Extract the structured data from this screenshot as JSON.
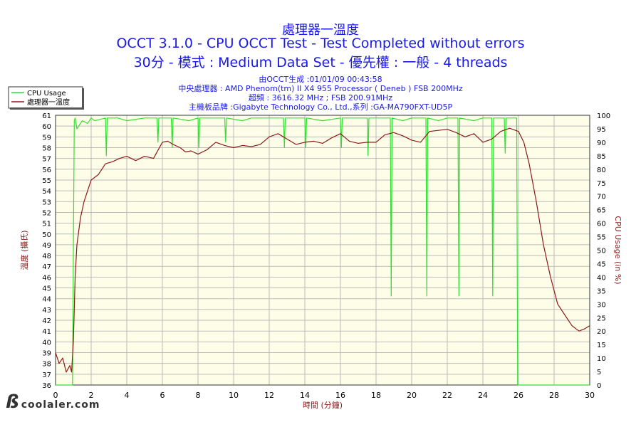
{
  "header": {
    "title_line1": "處理器一溫度",
    "title_line2": "OCCT 3.1.0 - CPU OCCT Test - Test Completed without errors",
    "title_line3": "30分 - 模式 : Medium Data Set - 優先權 : 一般 - 4 threads"
  },
  "info": {
    "line1": "由OCCT生成 :01/01/09 00:43:58",
    "line2": "中央處理器 : AMD Phenom(tm) II X4 955 Processor ( Deneb ) FSB 200MHz",
    "line3": "超頻 : 3616.32 MHz ; FSB 200.91MHz",
    "line4": "主機板品牌 :Gigabyte Technology Co., Ltd.,系列 :GA-MA790FXT-UD5P"
  },
  "watermark": "coolaler.com",
  "colors": {
    "cpu_usage": "#33dd33",
    "temperature": "#8b1a1a",
    "plot_bg": "#fefee8",
    "grid": "#bbbbbb",
    "text_blue": "#1a1ae6",
    "text_red": "#8b1a1a"
  },
  "chart_data": {
    "type": "line",
    "xlabel": "時間 (分鐘)",
    "ylabel_left": "溫度 (攝氏)",
    "ylabel_right": "CPU Usage (in %)",
    "xlim": [
      0,
      30
    ],
    "ylim_left": [
      36,
      61
    ],
    "ylim_right": [
      0,
      100
    ],
    "x_ticks": [
      0,
      2,
      4,
      6,
      8,
      10,
      12,
      14,
      16,
      18,
      20,
      22,
      24,
      26,
      28,
      30
    ],
    "y_left_ticks": [
      36,
      37,
      38,
      39,
      40,
      41,
      42,
      43,
      44,
      45,
      46,
      47,
      48,
      49,
      50,
      51,
      52,
      53,
      54,
      55,
      56,
      57,
      58,
      59,
      60,
      61
    ],
    "y_right_ticks": [
      0,
      5,
      10,
      15,
      20,
      25,
      30,
      35,
      40,
      45,
      50,
      55,
      60,
      65,
      70,
      75,
      80,
      85,
      90,
      95,
      100
    ],
    "grid": true,
    "legend_position": "top-left",
    "series": [
      {
        "name": "CPU Usage",
        "axis": "right",
        "x": [
          0,
          0.9,
          0.95,
          1.0,
          1.05,
          1.1,
          1.2,
          1.5,
          1.8,
          2.0,
          2.2,
          2.8,
          2.85,
          2.9,
          3.5,
          4.0,
          5.0,
          5.7,
          5.75,
          5.8,
          6.5,
          6.55,
          6.6,
          7.5,
          8.0,
          8.05,
          8.1,
          9.5,
          9.55,
          9.6,
          10.5,
          11.0,
          12.0,
          12.8,
          12.85,
          12.9,
          14.0,
          14.05,
          14.1,
          15.0,
          16.0,
          16.05,
          16.1,
          17.5,
          17.55,
          17.6,
          18.8,
          18.85,
          18.9,
          19.5,
          20.0,
          20.8,
          20.85,
          20.9,
          21.5,
          22.0,
          22.6,
          22.65,
          22.7,
          23.5,
          24.0,
          24.5,
          24.55,
          24.6,
          25.2,
          25.25,
          25.3,
          25.9,
          25.95,
          26.0,
          26.05,
          26.1,
          30
        ],
        "y": [
          0,
          0,
          0,
          50,
          98,
          99,
          95,
          98,
          97,
          99,
          98,
          99,
          85,
          99,
          99,
          98,
          99,
          99,
          90,
          99,
          99,
          88,
          99,
          98,
          99,
          88,
          99,
          99,
          90,
          99,
          98,
          99,
          99,
          99,
          88,
          99,
          99,
          88,
          99,
          98,
          99,
          88,
          99,
          99,
          85,
          99,
          99,
          33,
          99,
          98,
          99,
          99,
          33,
          99,
          98,
          99,
          99,
          33,
          99,
          98,
          99,
          99,
          33,
          99,
          99,
          86,
          99,
          99,
          0,
          0,
          0,
          0,
          0
        ]
      },
      {
        "name": "處理器一溫度",
        "axis": "left",
        "x": [
          0,
          0.2,
          0.4,
          0.6,
          0.8,
          0.9,
          1.0,
          1.05,
          1.1,
          1.2,
          1.4,
          1.6,
          1.8,
          2.0,
          2.4,
          2.8,
          3.2,
          3.6,
          4.0,
          4.5,
          5.0,
          5.5,
          6.0,
          6.3,
          6.6,
          7.0,
          7.3,
          7.6,
          8.0,
          8.5,
          9.0,
          9.5,
          10.0,
          10.5,
          11.0,
          11.5,
          12.0,
          12.5,
          13.0,
          13.5,
          14.0,
          14.5,
          15.0,
          15.5,
          16.0,
          16.5,
          17.0,
          17.5,
          18.0,
          18.5,
          19.0,
          19.5,
          20.0,
          20.5,
          21.0,
          21.5,
          22.0,
          22.5,
          23.0,
          23.5,
          24.0,
          24.5,
          25.0,
          25.5,
          26.0,
          26.3,
          26.6,
          27.0,
          27.4,
          27.8,
          28.2,
          28.6,
          29.0,
          29.4,
          29.7,
          30.0
        ],
        "y": [
          39,
          38,
          38.5,
          37.2,
          37.8,
          37.2,
          40,
          43,
          46,
          49,
          51.5,
          53,
          54,
          55,
          55.5,
          56.5,
          56.7,
          57,
          57.2,
          56.8,
          57.2,
          57,
          58.5,
          58.6,
          58.3,
          58,
          57.6,
          57.7,
          57.4,
          57.8,
          58.5,
          58.2,
          58,
          58.2,
          58.1,
          58.3,
          59,
          59.3,
          58.8,
          58.3,
          58.5,
          58.6,
          58.4,
          58.9,
          59.3,
          58.6,
          58.4,
          58.5,
          58.5,
          59.2,
          59.4,
          59.1,
          58.7,
          58.5,
          59.5,
          59.6,
          59.7,
          59.4,
          59.0,
          59.3,
          58.5,
          58.8,
          59.5,
          59.8,
          59.5,
          58.5,
          56.5,
          53,
          49,
          46,
          43.5,
          42.5,
          41.5,
          41,
          41.2,
          41.5
        ]
      }
    ]
  }
}
